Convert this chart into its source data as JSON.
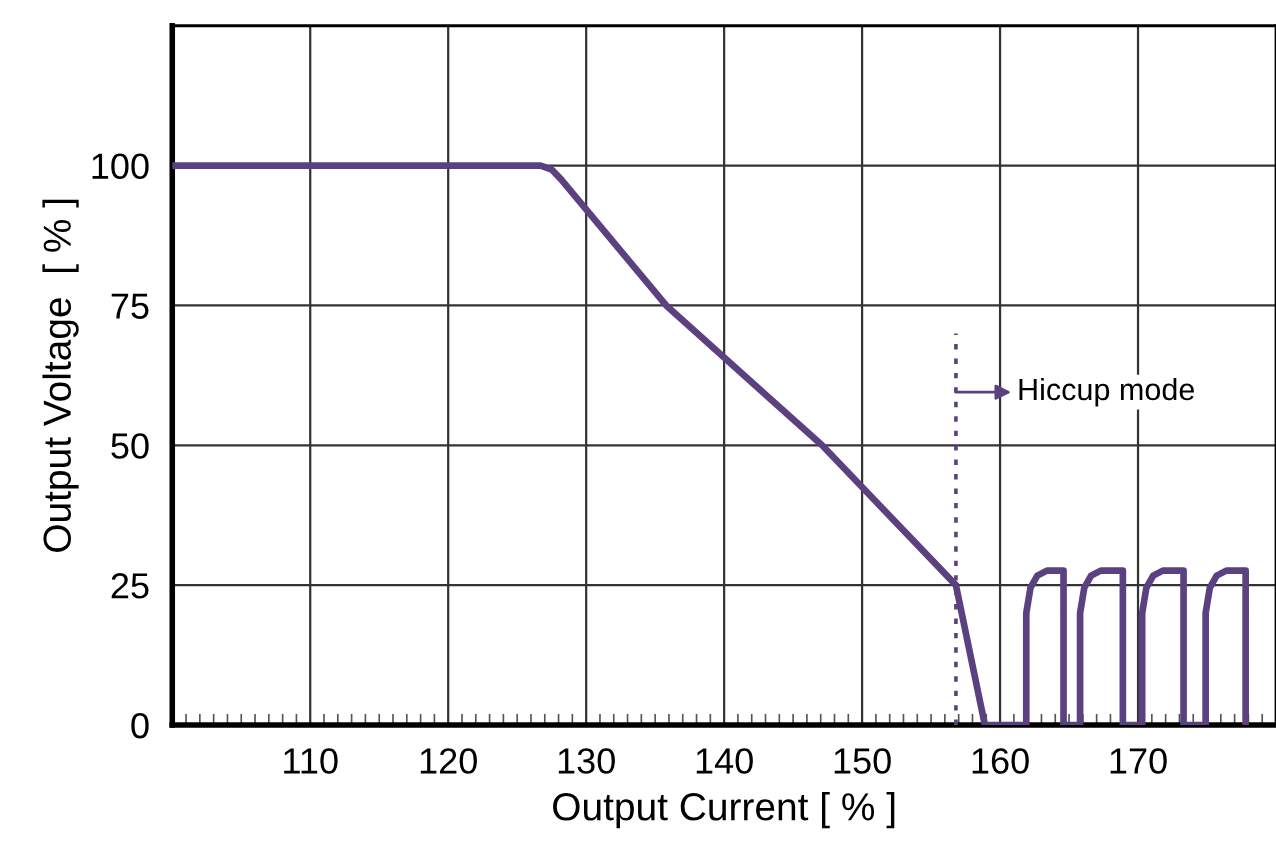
{
  "chart_data": {
    "type": "line",
    "xlabel": "Output Current [ % ]",
    "ylabel": "Output Voltage  [ % ]",
    "xlim": [
      100,
      180
    ],
    "ylim": [
      0,
      125
    ],
    "xticks": [
      110,
      120,
      130,
      140,
      150,
      160,
      170
    ],
    "yticks": [
      0,
      25,
      50,
      75,
      100
    ],
    "grid": true,
    "marker": "none",
    "series": [
      {
        "color": "#5b4180",
        "line_style": "solid",
        "x": [
          100,
          126.7,
          127.5,
          128.2,
          135.8,
          147.1,
          156.8,
          158.9
        ],
        "values": [
          100,
          100,
          99.3,
          97.5,
          75,
          50,
          25,
          0
        ]
      },
      {
        "color": "#5b4180",
        "line_style": "solid",
        "x": [
          158.9,
          161.9,
          161.9,
          162.2,
          162.7,
          163.4,
          164.6,
          164.6,
          165.8,
          165.8,
          166.1,
          166.6,
          167.3,
          168.9,
          168.9,
          170.3,
          170.3,
          170.6,
          171.1,
          171.8,
          173.3,
          173.3,
          174.9,
          174.9,
          175.2,
          175.7,
          176.4,
          177.8,
          177.8
        ],
        "values": [
          0,
          0,
          20,
          24.5,
          26.7,
          27.6,
          27.6,
          0,
          0,
          20,
          24.5,
          26.7,
          27.6,
          27.6,
          0,
          0,
          20,
          24.5,
          26.7,
          27.6,
          27.6,
          0,
          0,
          20,
          24.5,
          26.7,
          27.6,
          27.6,
          0
        ]
      },
      {
        "color": "#5b4180",
        "line_style": "dotted",
        "x": [
          156.8,
          156.8
        ],
        "values": [
          0,
          70
        ]
      }
    ],
    "annotations": [
      {
        "text": "Hiccup mode",
        "x": 156.8,
        "y": 59.5
      }
    ]
  }
}
